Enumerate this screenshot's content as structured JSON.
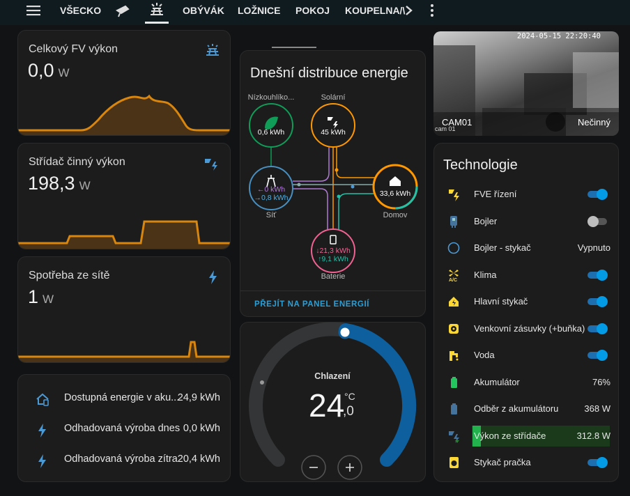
{
  "nav": {
    "tabs": [
      "VŠECKO",
      "OBÝVÁK",
      "LOŽNICE",
      "POKOJ",
      "KOUPELNA/\\"
    ]
  },
  "power_cards": [
    {
      "title": "Celkový FV výkon",
      "value": "0,0",
      "unit": "W"
    },
    {
      "title": "Střídač činný výkon",
      "value": "198,3",
      "unit": "W"
    },
    {
      "title": "Spotřeba ze sítě",
      "value": "1",
      "unit": "W"
    }
  ],
  "forecast": [
    {
      "label": "Dostupná energie v aku...",
      "value": "24,9 kWh"
    },
    {
      "label": "Odhadovaná výroba dnes",
      "value": "0,0 kWh"
    },
    {
      "label": "Odhadovaná výroba zítra",
      "value": "20,4 kWh"
    }
  ],
  "energy": {
    "title": "Dnešní distribuce energie",
    "low_carbon": {
      "label": "Nízkouhlíko...",
      "value": "0,6 kWh"
    },
    "solar": {
      "label": "Solární",
      "value": "45 kWh"
    },
    "grid": {
      "label": "Síť",
      "from": "←0 kWh",
      "to": "→0,8 kWh"
    },
    "home": {
      "label": "Domov",
      "value": "33,6 kWh"
    },
    "battery": {
      "label": "Baterie",
      "from": "↓21,3 kWh",
      "to": "↑9,1 kWh"
    },
    "link": "PŘEJÍT NA PANEL ENERGIÍ"
  },
  "thermostat": {
    "mode": "Chlazení",
    "integer": "24",
    "unit": "°C",
    "decimal": ",0"
  },
  "camera": {
    "timestamp": "2024-05-15 22:20:40",
    "name": "CAM01",
    "state": "Nečinný",
    "caption": "cam 01"
  },
  "technologie": {
    "title": "Technologie",
    "rows": [
      {
        "name": "FVE řízení",
        "toggle": true
      },
      {
        "name": "Bojler",
        "toggle": false
      },
      {
        "name": "Bojler - stykač",
        "state": "Vypnuto"
      },
      {
        "name": "Klima",
        "toggle": true
      },
      {
        "name": "Hlavní stykač",
        "toggle": true
      },
      {
        "name": "Venkovní zásuvky (+buňka)",
        "toggle": true
      },
      {
        "name": "Voda",
        "toggle": true
      },
      {
        "name": "Akumulátor",
        "state": "76%"
      },
      {
        "name": "Odběr z akumulátoru",
        "state": "368 W"
      },
      {
        "name": "Výkon ze střídače",
        "state": "312.8 W",
        "highlight": true
      },
      {
        "name": "Stykač pračka",
        "toggle": true
      }
    ]
  }
}
